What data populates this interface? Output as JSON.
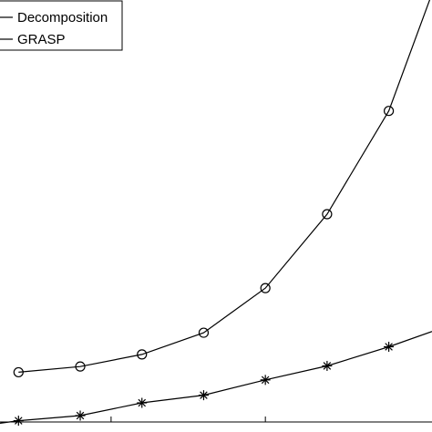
{
  "chart_data": {
    "type": "line",
    "x": [
      1,
      2,
      3,
      4,
      5,
      6,
      7
    ],
    "series": [
      {
        "name": "Decomposition",
        "marker": "circle",
        "color": "#000000",
        "x": [
          1,
          2,
          3,
          4,
          5,
          6,
          7,
          7.7
        ],
        "values": [
          38,
          42.5,
          52,
          69,
          104,
          162,
          243,
          335
        ]
      },
      {
        "name": "GRASP",
        "marker": "asterisk",
        "color": "#000000",
        "x": [
          0.7,
          1,
          2,
          3,
          4,
          5,
          6,
          7,
          7.7
        ],
        "values": [
          -2,
          0,
          4,
          14,
          20,
          32,
          43,
          58,
          70
        ]
      }
    ],
    "xlim": [
      0.7,
      7.7
    ],
    "ylim": [
      -1,
      330
    ],
    "xticks": [
      2.5,
      5
    ],
    "legend": "top-left",
    "grid": false,
    "title": "",
    "xlabel": "",
    "ylabel": ""
  },
  "legend": {
    "items": [
      {
        "label": "Decomposition"
      },
      {
        "label": "GRASP"
      }
    ]
  }
}
